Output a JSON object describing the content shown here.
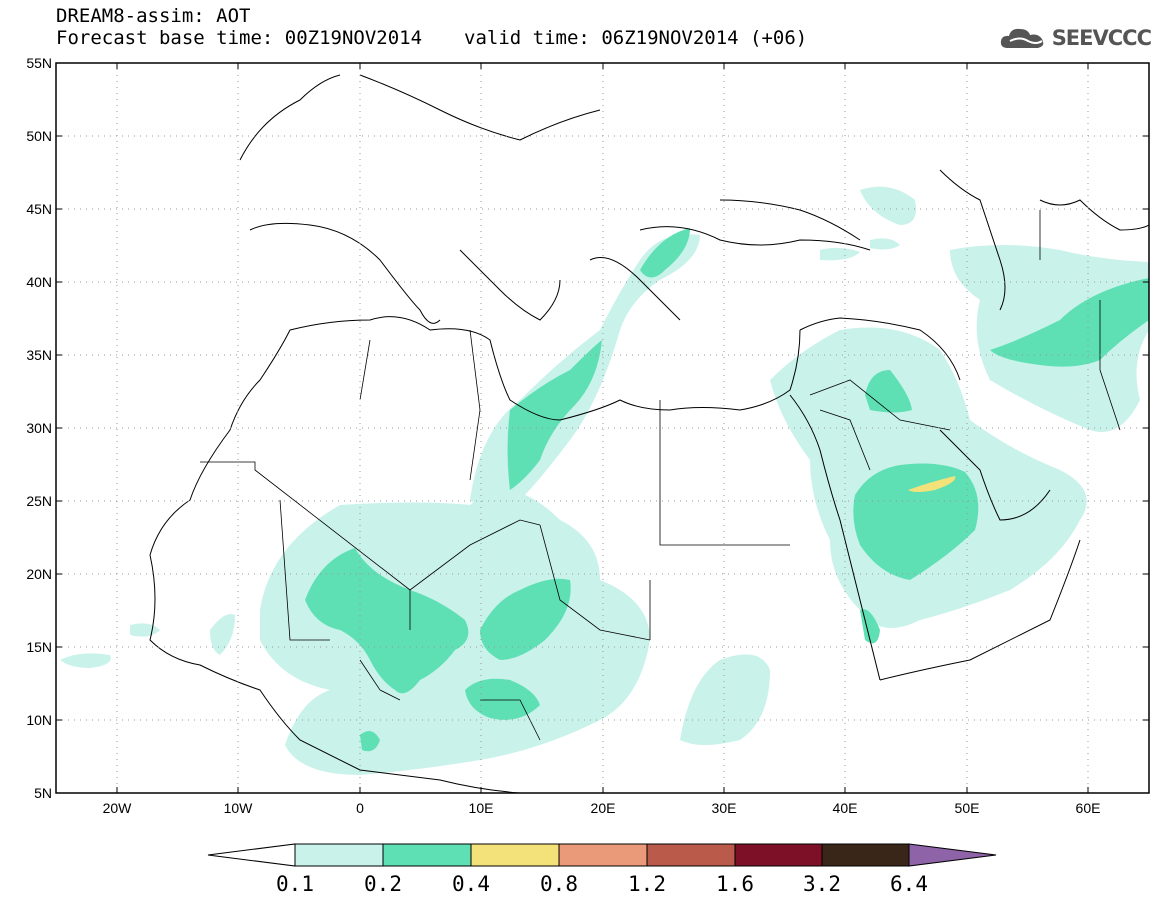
{
  "header": {
    "title": "DREAM8-assim: AOT",
    "base_time_label": "Forecast base time: 00Z19NOV2014",
    "valid_time_label": "valid time: 06Z19NOV2014 (+06)",
    "logo_text": "SEEVCCC",
    "logo_icon": "cloud-icon"
  },
  "map": {
    "lat_labels": [
      "55N",
      "50N",
      "45N",
      "40N",
      "35N",
      "30N",
      "25N",
      "20N",
      "15N",
      "10N",
      "5N"
    ],
    "lon_labels": [
      "20W",
      "10W",
      "0",
      "10E",
      "20E",
      "30E",
      "40E",
      "50E",
      "60E"
    ],
    "grid": true
  },
  "colorbar": {
    "colors": [
      "#c9f2ea",
      "#5fe0b4",
      "#f3e27a",
      "#ea9a78",
      "#b95a4a",
      "#7d0f26",
      "#3a2618",
      "#8e63a8"
    ],
    "labels": [
      "0.1",
      "0.2",
      "0.4",
      "0.8",
      "1.2",
      "1.6",
      "3.2",
      "6.4"
    ]
  }
}
